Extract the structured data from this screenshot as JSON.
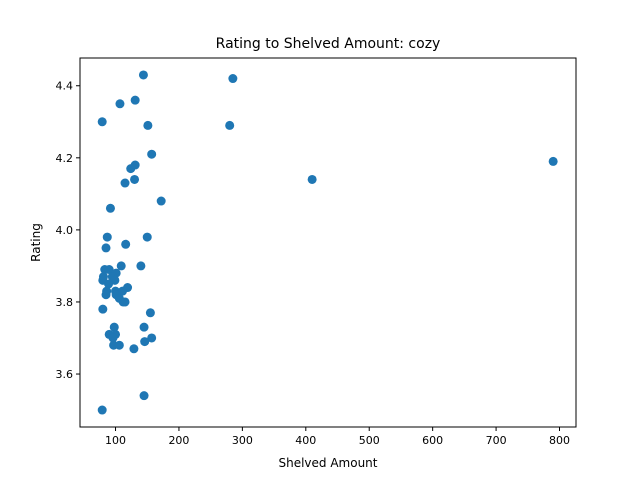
{
  "chart_data": {
    "type": "scatter",
    "title": "Rating to Shelved Amount: cozy",
    "xlabel": "Shelved Amount",
    "ylabel": "Rating",
    "xlim": [
      44,
      826
    ],
    "ylim": [
      3.453,
      4.477
    ],
    "xticks": [
      "100",
      "200",
      "300",
      "400",
      "500",
      "600",
      "700",
      "800"
    ],
    "yticks": [
      "3.6",
      "3.8",
      "4.0",
      "4.2",
      "4.4"
    ],
    "grid": false,
    "marker_color": "#1f77b4",
    "series": [
      {
        "points": [
          [
            144,
            4.43
          ],
          [
            285,
            4.42
          ],
          [
            107,
            4.35
          ],
          [
            131,
            4.36
          ],
          [
            79,
            4.3
          ],
          [
            151,
            4.29
          ],
          [
            280,
            4.29
          ],
          [
            157,
            4.21
          ],
          [
            790,
            4.19
          ],
          [
            124,
            4.17
          ],
          [
            131,
            4.18
          ],
          [
            115,
            4.13
          ],
          [
            130,
            4.14
          ],
          [
            410,
            4.14
          ],
          [
            172,
            4.08
          ],
          [
            92,
            4.06
          ],
          [
            87,
            3.98
          ],
          [
            150,
            3.98
          ],
          [
            116,
            3.96
          ],
          [
            85,
            3.95
          ],
          [
            109,
            3.9
          ],
          [
            140,
            3.9
          ],
          [
            83,
            3.89
          ],
          [
            90,
            3.89
          ],
          [
            101,
            3.88
          ],
          [
            81,
            3.87
          ],
          [
            95,
            3.87
          ],
          [
            80,
            3.86
          ],
          [
            99,
            3.86
          ],
          [
            89,
            3.85
          ],
          [
            119,
            3.84
          ],
          [
            86,
            3.83
          ],
          [
            100,
            3.83
          ],
          [
            111,
            3.83
          ],
          [
            85,
            3.82
          ],
          [
            101,
            3.82
          ],
          [
            106,
            3.81
          ],
          [
            112,
            3.8
          ],
          [
            115,
            3.8
          ],
          [
            80,
            3.78
          ],
          [
            155,
            3.77
          ],
          [
            145,
            3.73
          ],
          [
            98,
            3.73
          ],
          [
            90,
            3.71
          ],
          [
            100,
            3.71
          ],
          [
            96,
            3.7
          ],
          [
            157,
            3.7
          ],
          [
            97,
            3.68
          ],
          [
            106,
            3.68
          ],
          [
            146,
            3.69
          ],
          [
            129,
            3.67
          ],
          [
            145,
            3.54
          ],
          [
            79,
            3.5
          ]
        ]
      }
    ]
  }
}
